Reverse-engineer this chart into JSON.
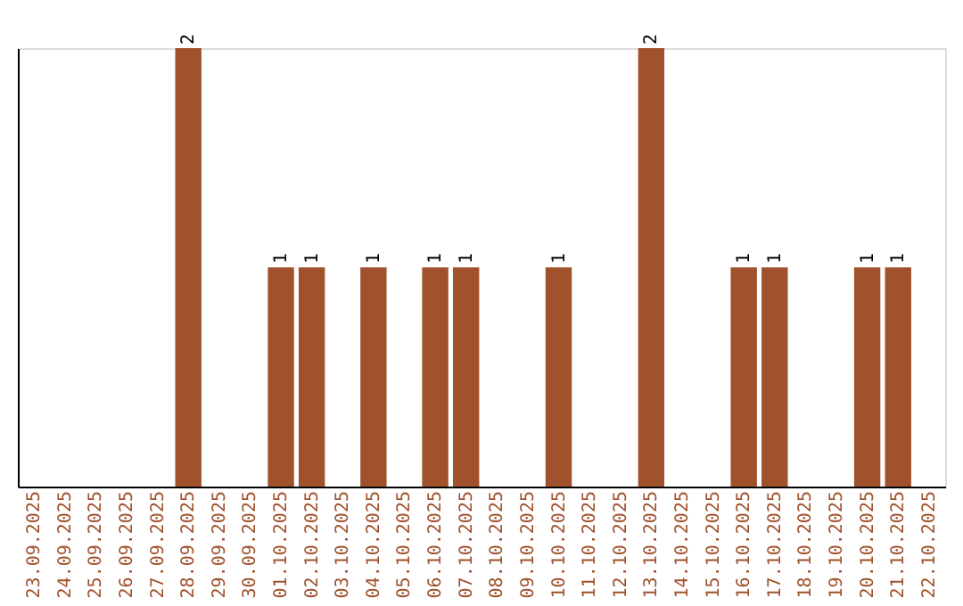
{
  "chart_data": {
    "type": "bar",
    "categories": [
      "23.09.2025",
      "24.09.2025",
      "25.09.2025",
      "26.09.2025",
      "27.09.2025",
      "28.09.2025",
      "29.09.2025",
      "30.09.2025",
      "01.10.2025",
      "02.10.2025",
      "03.10.2025",
      "04.10.2025",
      "05.10.2025",
      "06.10.2025",
      "07.10.2025",
      "08.10.2025",
      "09.10.2025",
      "10.10.2025",
      "11.10.2025",
      "12.10.2025",
      "13.10.2025",
      "14.10.2025",
      "15.10.2025",
      "16.10.2025",
      "17.10.2025",
      "18.10.2025",
      "19.10.2025",
      "20.10.2025",
      "21.10.2025",
      "22.10.2025"
    ],
    "values": [
      0,
      0,
      0,
      0,
      0,
      2,
      0,
      0,
      1,
      1,
      0,
      1,
      0,
      1,
      1,
      0,
      0,
      1,
      0,
      0,
      2,
      0,
      0,
      1,
      1,
      0,
      0,
      1,
      1,
      0
    ],
    "value_labels": [
      null,
      null,
      null,
      null,
      null,
      "2",
      null,
      null,
      "1",
      "1",
      null,
      "1",
      null,
      "1",
      "1",
      null,
      null,
      "1",
      null,
      null,
      "2",
      null,
      null,
      "1",
      "1",
      null,
      null,
      "1",
      "1",
      null
    ],
    "color": "#a0522d",
    "grid": false,
    "tick_labels": "x"
  }
}
